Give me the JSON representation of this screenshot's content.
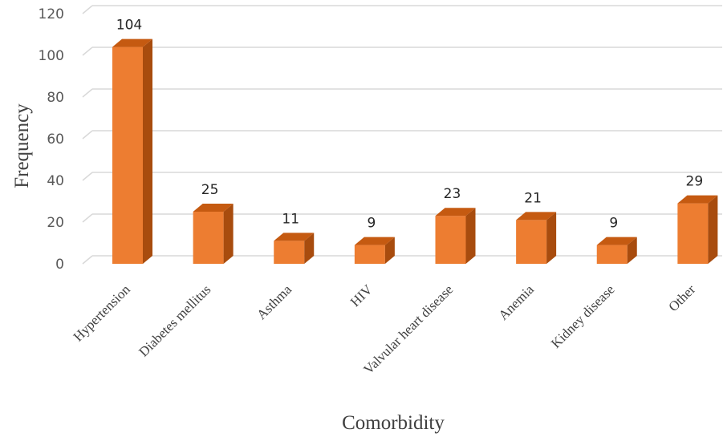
{
  "chart_data": {
    "type": "bar",
    "style": "3d-column",
    "categories": [
      "Hypertension",
      "Diabetes mellitus",
      "Asthma",
      "HIV",
      "Valvular heart disease",
      "Anemia",
      "Kidney disease",
      "Other"
    ],
    "values": [
      104,
      25,
      11,
      9,
      23,
      21,
      9,
      29
    ],
    "data_labels": [
      "104",
      "25",
      "11",
      "9",
      "23",
      "21",
      "9",
      "29"
    ],
    "xlabel": "Comorbidity",
    "ylabel": "Frequency",
    "ylim": [
      0,
      120
    ],
    "yticks": [
      0,
      20,
      40,
      60,
      80,
      100,
      120
    ],
    "grid": true,
    "legend": "none",
    "colors": {
      "front": "#ed7d31",
      "top": "#c55a11",
      "side": "#a84c0e",
      "grid": "#d9d9d9"
    }
  }
}
